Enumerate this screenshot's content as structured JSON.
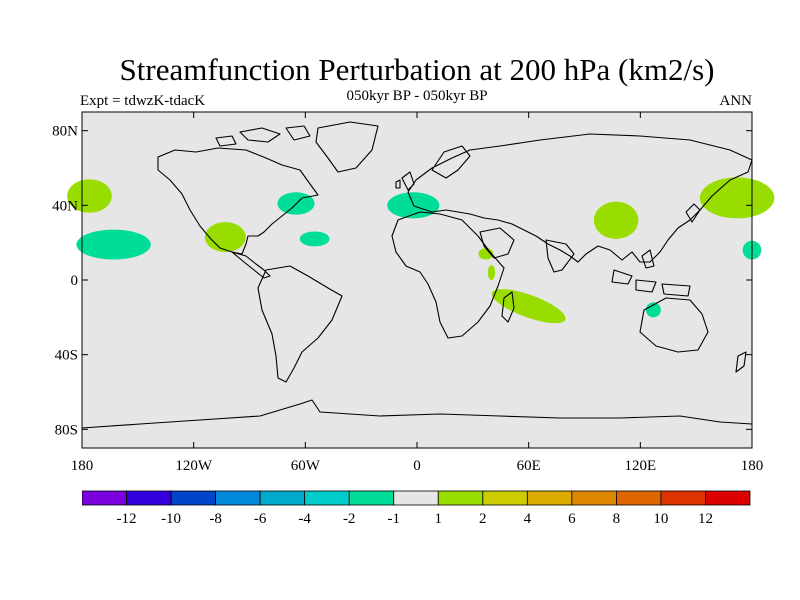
{
  "header": {
    "title": "Streamfunction Perturbation at 200 hPa (km2/s)",
    "subtitle": "050kyr BP - 050kyr BP",
    "left_label": "Expt = tdwzK-tdacK",
    "right_label": "ANN"
  },
  "map": {
    "projection": "cylindrical-equidistant",
    "lon_range": [
      -180,
      180
    ],
    "lat_range": [
      -90,
      90
    ],
    "background_color": "#e6e6e6",
    "lat_ticks": [
      {
        "lat": 80,
        "label": "80N"
      },
      {
        "lat": 40,
        "label": "40N"
      },
      {
        "lat": 0,
        "label": "0"
      },
      {
        "lat": -40,
        "label": "40S"
      },
      {
        "lat": -80,
        "label": "80S"
      }
    ],
    "lon_ticks": [
      {
        "lon": -180,
        "label": "180"
      },
      {
        "lon": -120,
        "label": "120W"
      },
      {
        "lon": -60,
        "label": "60W"
      },
      {
        "lon": 0,
        "label": "0"
      },
      {
        "lon": 60,
        "label": "60E"
      },
      {
        "lon": 120,
        "label": "120E"
      },
      {
        "lon": 180,
        "label": "180"
      }
    ],
    "anomalies": [
      {
        "region": "north-pacific-east",
        "sign": "positive",
        "color": "#99dd00",
        "lon": -176,
        "lat": 45,
        "rlon": 12,
        "rlat": 9
      },
      {
        "region": "subtropical-pacific",
        "sign": "negative",
        "color": "#00dd99",
        "lon": -163,
        "lat": 19,
        "rlon": 20,
        "rlat": 8
      },
      {
        "region": "mexico",
        "sign": "positive",
        "color": "#99dd00",
        "lon": -103,
        "lat": 23,
        "rlon": 11,
        "rlat": 8
      },
      {
        "region": "eastern-north-america",
        "sign": "negative",
        "color": "#00dd99",
        "lon": -65,
        "lat": 41,
        "rlon": 10,
        "rlat": 6
      },
      {
        "region": "central-atlantic",
        "sign": "negative",
        "color": "#00dd99",
        "lon": -55,
        "lat": 22,
        "rlon": 8,
        "rlat": 4
      },
      {
        "region": "mediterranean",
        "sign": "negative",
        "color": "#00dd99",
        "lon": -2,
        "lat": 40,
        "rlon": 14,
        "rlat": 7
      },
      {
        "region": "east-africa",
        "sign": "positive",
        "color": "#99dd00",
        "lon": 37,
        "lat": 14,
        "rlon": 4,
        "rlat": 3
      },
      {
        "region": "east-africa-small",
        "sign": "positive",
        "color": "#99dd00",
        "lon": 40,
        "lat": 4,
        "rlon": 2,
        "rlat": 4
      },
      {
        "region": "south-indian-ocean",
        "sign": "positive",
        "color": "#99dd00",
        "lon": 60,
        "lat": -14,
        "rlon": 21,
        "rlat": 6,
        "rot": 20
      },
      {
        "region": "tibet",
        "sign": "positive",
        "color": "#99dd00",
        "lon": 107,
        "lat": 32,
        "rlon": 12,
        "rlat": 10
      },
      {
        "region": "northern-australia",
        "sign": "negative",
        "color": "#00dd99",
        "lon": 127,
        "lat": -16,
        "rlon": 4,
        "rlat": 4
      },
      {
        "region": "north-pacific-west",
        "sign": "positive",
        "color": "#99dd00",
        "lon": 172,
        "lat": 44,
        "rlon": 20,
        "rlat": 11
      },
      {
        "region": "subtropical-pacific-west",
        "sign": "negative",
        "color": "#00dd99",
        "lon": 180,
        "lat": 16,
        "rlon": 5,
        "rlat": 5
      }
    ]
  },
  "colorbar": {
    "colors": [
      "#7a00dd",
      "#3300dd",
      "#0044cc",
      "#0088dd",
      "#00aacc",
      "#00cccc",
      "#00dd99",
      "#e6e6e6",
      "#99dd00",
      "#cccc00",
      "#ddaa00",
      "#dd8800",
      "#dd6600",
      "#dd3300",
      "#dd0000"
    ],
    "labels": [
      "-12",
      "-10",
      "-8",
      "-6",
      "-4",
      "-2",
      "-1",
      "1",
      "2",
      "4",
      "6",
      "8",
      "10",
      "12"
    ]
  }
}
